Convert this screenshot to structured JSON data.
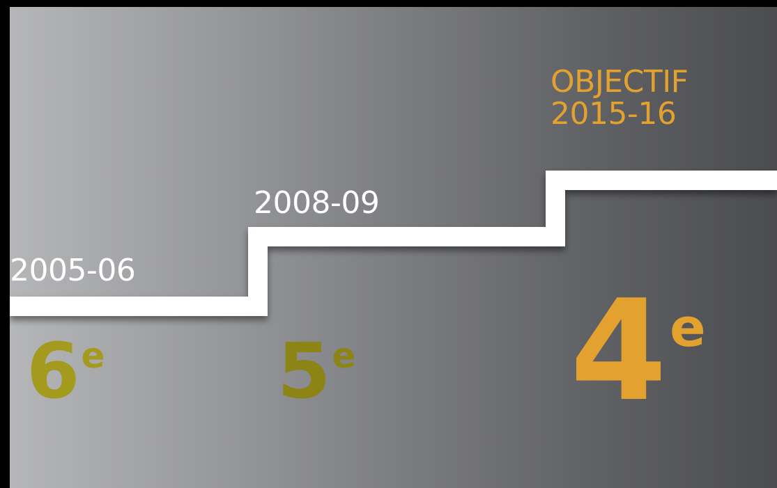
{
  "labels": {
    "year_2005": "2005-06",
    "year_2008": "2008-09",
    "objectif_line1": "OBJECTIF",
    "objectif_line2": "2015-16"
  },
  "grades": [
    {
      "number": "6",
      "suffix": "e",
      "color": "#a39a1e"
    },
    {
      "number": "5",
      "suffix": "e",
      "color": "#8c8414"
    },
    {
      "number": "4",
      "suffix": "e",
      "color": "#e3a12f"
    }
  ],
  "colors": {
    "stair_line": "#ffffff",
    "objectif_accent": "#e3a12f",
    "background_left": "#b5b6b8",
    "background_right": "#4b4c4f"
  }
}
